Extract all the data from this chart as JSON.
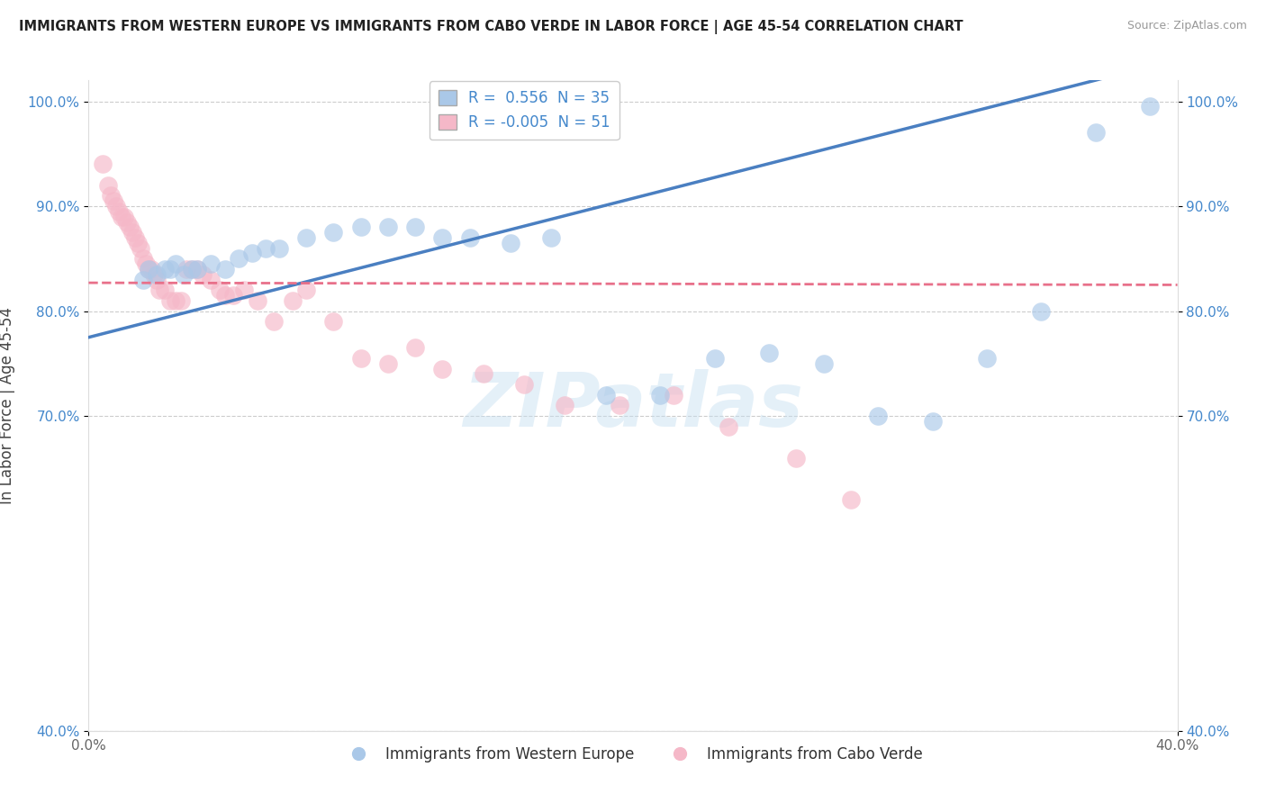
{
  "title": "IMMIGRANTS FROM WESTERN EUROPE VS IMMIGRANTS FROM CABO VERDE IN LABOR FORCE | AGE 45-54 CORRELATION CHART",
  "source": "Source: ZipAtlas.com",
  "ylabel": "In Labor Force | Age 45-54",
  "xlim": [
    0.0,
    0.4
  ],
  "ylim": [
    0.4,
    1.02
  ],
  "x_tick_labels": [
    "0.0%",
    "40.0%"
  ],
  "y_tick_labels": [
    "40.0%",
    "70.0%",
    "80.0%",
    "90.0%",
    "100.0%"
  ],
  "y_tick_positions": [
    0.4,
    0.7,
    0.8,
    0.9,
    1.0
  ],
  "background_color": "#ffffff",
  "grid_color": "#cccccc",
  "western_europe_R": 0.556,
  "western_europe_N": 35,
  "cabo_verde_R": -0.005,
  "cabo_verde_N": 51,
  "blue_color": "#aac8e8",
  "pink_color": "#f5b8c8",
  "blue_line_color": "#4a7fc1",
  "pink_line_color": "#e8708a",
  "we_x": [
    0.02,
    0.022,
    0.025,
    0.028,
    0.03,
    0.032,
    0.035,
    0.038,
    0.04,
    0.045,
    0.05,
    0.055,
    0.06,
    0.065,
    0.07,
    0.08,
    0.09,
    0.1,
    0.11,
    0.12,
    0.13,
    0.14,
    0.155,
    0.17,
    0.19,
    0.21,
    0.23,
    0.25,
    0.27,
    0.29,
    0.31,
    0.33,
    0.35,
    0.37,
    0.39
  ],
  "we_y": [
    0.83,
    0.84,
    0.835,
    0.84,
    0.84,
    0.845,
    0.835,
    0.84,
    0.84,
    0.845,
    0.84,
    0.85,
    0.855,
    0.86,
    0.86,
    0.87,
    0.875,
    0.88,
    0.88,
    0.88,
    0.87,
    0.87,
    0.865,
    0.87,
    0.72,
    0.72,
    0.755,
    0.76,
    0.75,
    0.7,
    0.695,
    0.755,
    0.8,
    0.97,
    0.995
  ],
  "cv_x": [
    0.005,
    0.007,
    0.008,
    0.009,
    0.01,
    0.011,
    0.012,
    0.013,
    0.014,
    0.015,
    0.016,
    0.017,
    0.018,
    0.019,
    0.02,
    0.021,
    0.022,
    0.023,
    0.024,
    0.025,
    0.026,
    0.028,
    0.03,
    0.032,
    0.034,
    0.036,
    0.038,
    0.04,
    0.042,
    0.045,
    0.048,
    0.05,
    0.053,
    0.057,
    0.062,
    0.068,
    0.075,
    0.08,
    0.09,
    0.1,
    0.11,
    0.12,
    0.13,
    0.145,
    0.16,
    0.175,
    0.195,
    0.215,
    0.235,
    0.26,
    0.28
  ],
  "cv_y": [
    0.94,
    0.92,
    0.91,
    0.905,
    0.9,
    0.895,
    0.89,
    0.89,
    0.885,
    0.88,
    0.875,
    0.87,
    0.865,
    0.86,
    0.85,
    0.845,
    0.84,
    0.84,
    0.835,
    0.83,
    0.82,
    0.82,
    0.81,
    0.81,
    0.81,
    0.84,
    0.84,
    0.84,
    0.835,
    0.83,
    0.82,
    0.815,
    0.815,
    0.82,
    0.81,
    0.79,
    0.81,
    0.82,
    0.79,
    0.755,
    0.75,
    0.765,
    0.745,
    0.74,
    0.73,
    0.71,
    0.71,
    0.72,
    0.69,
    0.66,
    0.62
  ],
  "watermark_text": "ZIPatlas",
  "watermark_color": "#c5dff0",
  "watermark_alpha": 0.45
}
